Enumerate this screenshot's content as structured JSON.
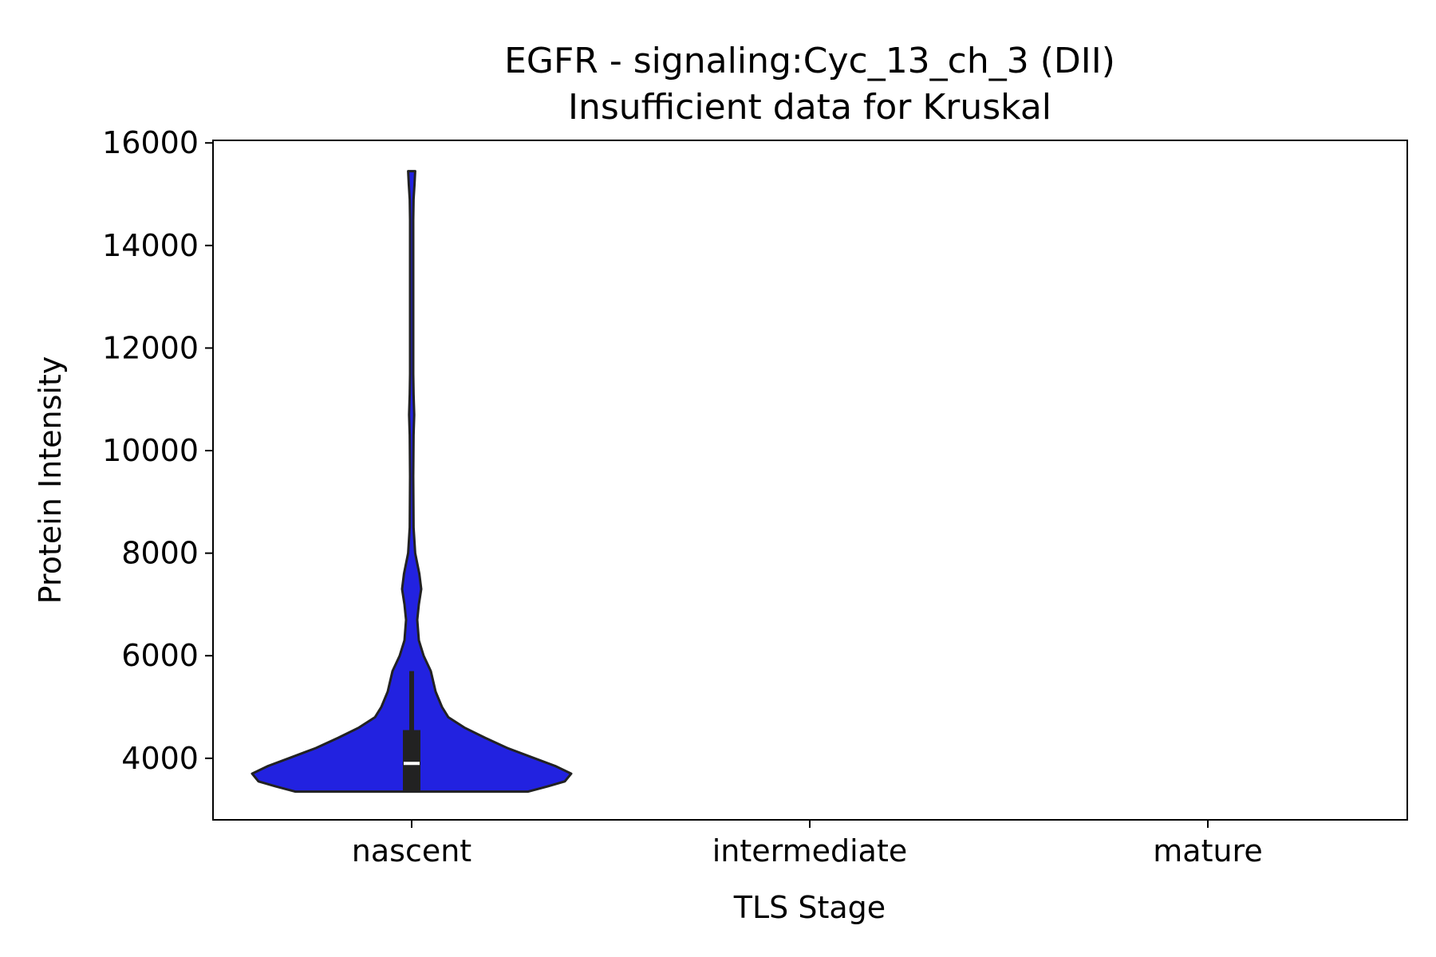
{
  "chart_data": {
    "type": "violin",
    "title": "EGFR - signaling:Cyc_13_ch_3 (DII)",
    "subtitle": "Insufficient data for Kruskal",
    "xlabel": "TLS Stage",
    "ylabel": "Protein Intensity",
    "categories": [
      "nascent",
      "intermediate",
      "mature"
    ],
    "y_ticks": [
      4000,
      6000,
      8000,
      10000,
      12000,
      14000,
      16000
    ],
    "ylim": [
      2800,
      16050
    ],
    "grid": false,
    "colors": {
      "violin_fill": "#2222e0",
      "outline": "#222222",
      "box": "#222222",
      "median": "#ffffff",
      "axes": "#000000"
    },
    "series": [
      {
        "category": "nascent",
        "min": 3350,
        "q1": 3350,
        "median": 3900,
        "q3": 4550,
        "whisker_high": 5700,
        "max": 15450,
        "density_profile": [
          [
            3350,
            0.73
          ],
          [
            3450,
            0.85
          ],
          [
            3550,
            0.96
          ],
          [
            3700,
            1.0
          ],
          [
            3850,
            0.9
          ],
          [
            4000,
            0.77
          ],
          [
            4200,
            0.6
          ],
          [
            4400,
            0.46
          ],
          [
            4600,
            0.33
          ],
          [
            4800,
            0.23
          ],
          [
            5000,
            0.19
          ],
          [
            5300,
            0.15
          ],
          [
            5700,
            0.12
          ],
          [
            6000,
            0.075
          ],
          [
            6300,
            0.045
          ],
          [
            6700,
            0.035
          ],
          [
            7000,
            0.045
          ],
          [
            7300,
            0.06
          ],
          [
            7600,
            0.048
          ],
          [
            8000,
            0.022
          ],
          [
            8500,
            0.012
          ],
          [
            9500,
            0.01
          ],
          [
            10300,
            0.012
          ],
          [
            10700,
            0.016
          ],
          [
            11100,
            0.012
          ],
          [
            11500,
            0.01
          ],
          [
            13000,
            0.01
          ],
          [
            14500,
            0.01
          ],
          [
            14900,
            0.012
          ],
          [
            15200,
            0.018
          ],
          [
            15450,
            0.022
          ]
        ]
      },
      {
        "category": "intermediate"
      },
      {
        "category": "mature"
      }
    ]
  }
}
